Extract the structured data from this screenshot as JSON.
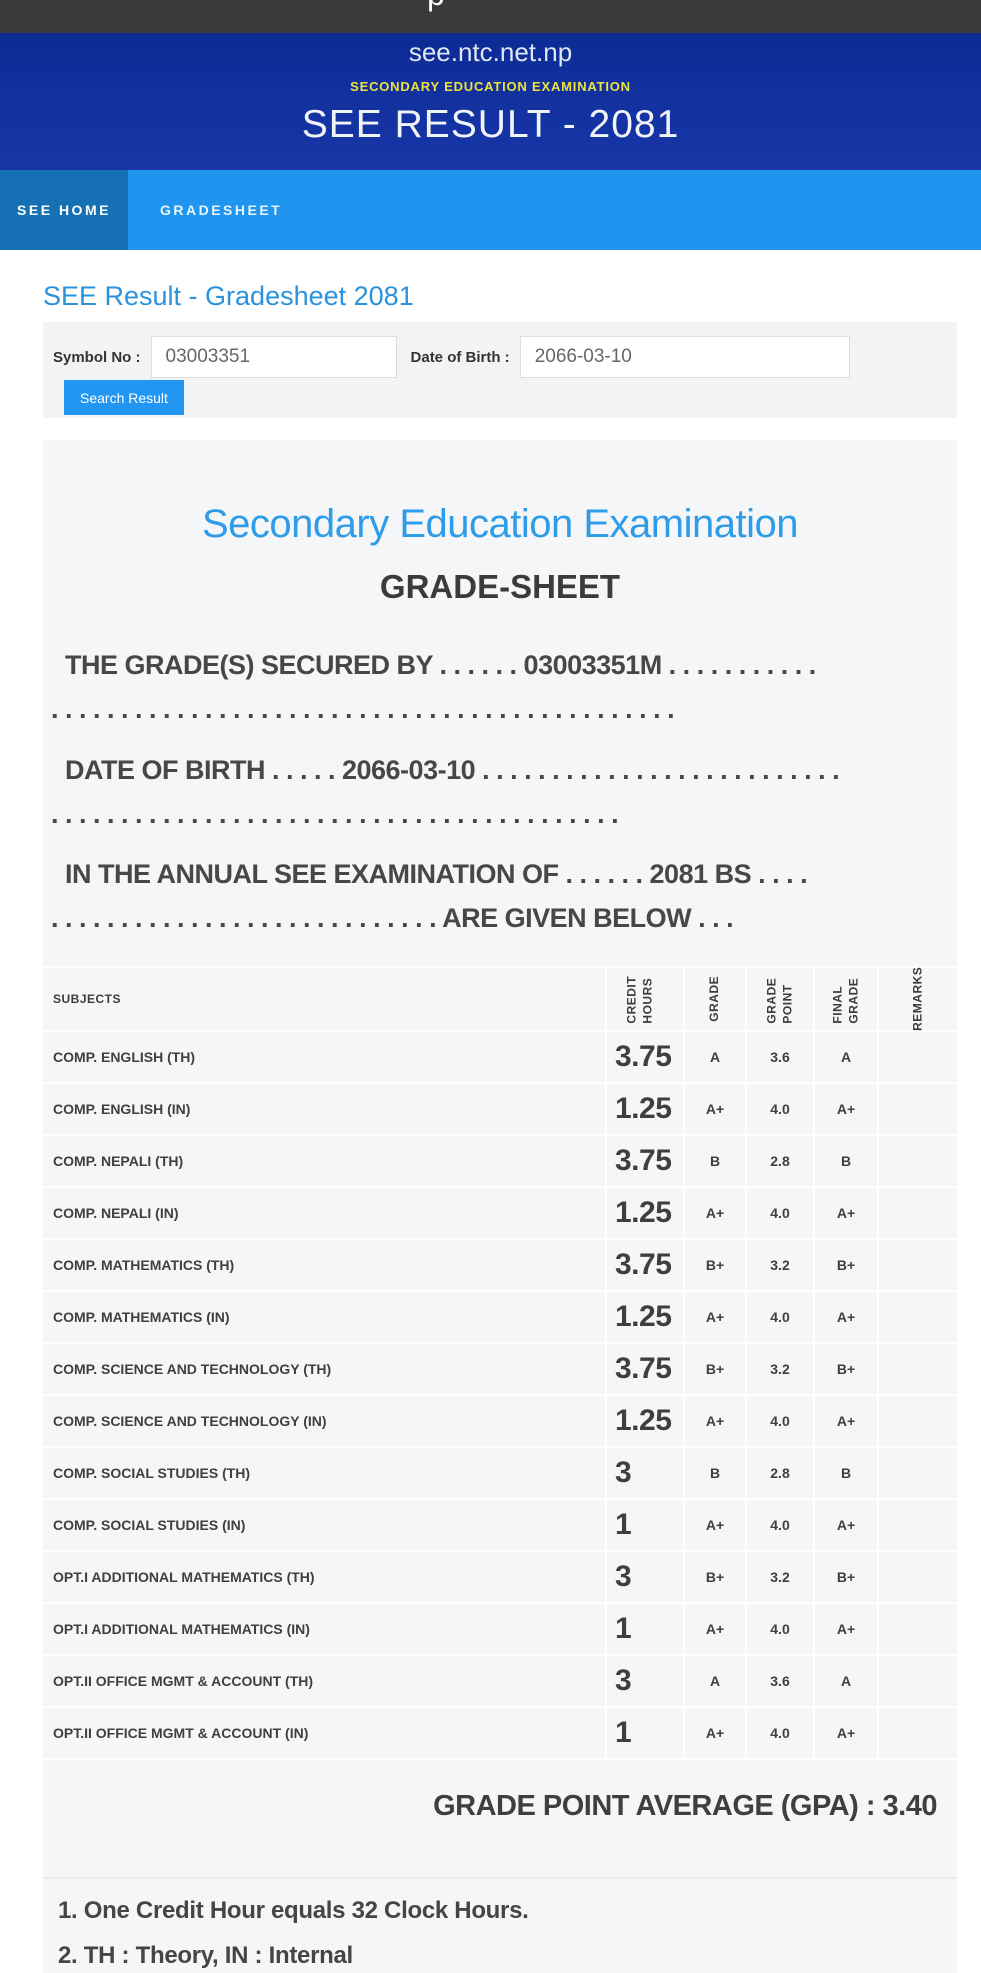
{
  "browser": {
    "clipped_title_fragment": "p"
  },
  "header": {
    "site": "see.ntc.net.np",
    "subtitle": "SECONDARY EDUCATION EXAMINATION",
    "title": "SEE RESULT - 2081"
  },
  "nav": {
    "items": [
      {
        "label": "SEE HOME",
        "active": true
      },
      {
        "label": "GRADESHEET",
        "active": false
      }
    ]
  },
  "page": {
    "heading": "SEE Result - Gradesheet 2081"
  },
  "search_form": {
    "symbol_label": "Symbol No :",
    "symbol_value": "03003351",
    "dob_label": "Date of Birth :",
    "dob_value": "2066-03-10",
    "submit_label": "Search Result"
  },
  "gradesheet": {
    "board": "Secondary Education Examination",
    "doc_title": "GRADE-SHEET",
    "secured_line1": "THE GRADE(S) SECURED BY . . . . . . 03003351M . . . . . . . . . . .",
    "secured_line2": ". . . . . . . . . . . . . . . . . . . . . . . . . . . . . . . . . . . . . . . . . . . . .",
    "dob_line1": "DATE OF BIRTH . . . . . 2066-03-10 . . . . . . . . . . . . . . . . . . . . . . . . . .",
    "dob_line2": ". . . . . . . . . . . . . . . . . . . . . . . . . . . . . . . . . . . . . . . . .",
    "exam_line1": "IN THE ANNUAL SEE EXAMINATION OF . . . . . . 2081 BS . . . .",
    "exam_line2": ". . . . . . . . . . . . . . . . . . . . . . . . . . . . ARE GIVEN BELOW . . .",
    "gpa_text": "GRADE POINT AVERAGE (GPA) : 3.40",
    "notes": [
      "1. One Credit Hour equals 32 Clock Hours.",
      "2. TH : Theory, IN : Internal"
    ]
  },
  "table": {
    "headers": [
      "SUBJECTS",
      "CREDIT HOURS",
      "GRADE",
      "GRADE POINT",
      "FINAL GRADE",
      "REMARKS"
    ],
    "rows": [
      {
        "subject": "COMP. ENGLISH (TH)",
        "credit": "3.75",
        "grade": "A",
        "point": "3.6",
        "final": "A",
        "remarks": ""
      },
      {
        "subject": "COMP. ENGLISH (IN)",
        "credit": "1.25",
        "grade": "A+",
        "point": "4.0",
        "final": "A+",
        "remarks": ""
      },
      {
        "subject": "COMP. NEPALI (TH)",
        "credit": "3.75",
        "grade": "B",
        "point": "2.8",
        "final": "B",
        "remarks": ""
      },
      {
        "subject": "COMP. NEPALI (IN)",
        "credit": "1.25",
        "grade": "A+",
        "point": "4.0",
        "final": "A+",
        "remarks": ""
      },
      {
        "subject": "COMP. MATHEMATICS (TH)",
        "credit": "3.75",
        "grade": "B+",
        "point": "3.2",
        "final": "B+",
        "remarks": ""
      },
      {
        "subject": "COMP. MATHEMATICS (IN)",
        "credit": "1.25",
        "grade": "A+",
        "point": "4.0",
        "final": "A+",
        "remarks": ""
      },
      {
        "subject": "COMP. SCIENCE AND TECHNOLOGY (TH)",
        "credit": "3.75",
        "grade": "B+",
        "point": "3.2",
        "final": "B+",
        "remarks": ""
      },
      {
        "subject": "COMP. SCIENCE AND TECHNOLOGY (IN)",
        "credit": "1.25",
        "grade": "A+",
        "point": "4.0",
        "final": "A+",
        "remarks": ""
      },
      {
        "subject": "COMP. SOCIAL STUDIES (TH)",
        "credit": "3",
        "grade": "B",
        "point": "2.8",
        "final": "B",
        "remarks": ""
      },
      {
        "subject": "COMP. SOCIAL STUDIES (IN)",
        "credit": "1",
        "grade": "A+",
        "point": "4.0",
        "final": "A+",
        "remarks": ""
      },
      {
        "subject": "OPT.I ADDITIONAL MATHEMATICS (TH)",
        "credit": "3",
        "grade": "B+",
        "point": "3.2",
        "final": "B+",
        "remarks": ""
      },
      {
        "subject": "OPT.I ADDITIONAL MATHEMATICS (IN)",
        "credit": "1",
        "grade": "A+",
        "point": "4.0",
        "final": "A+",
        "remarks": ""
      },
      {
        "subject": "OPT.II OFFICE MGMT & ACCOUNT (TH)",
        "credit": "3",
        "grade": "A",
        "point": "3.6",
        "final": "A",
        "remarks": ""
      },
      {
        "subject": "OPT.II OFFICE MGMT & ACCOUNT (IN)",
        "credit": "1",
        "grade": "A+",
        "point": "4.0",
        "final": "A+",
        "remarks": ""
      }
    ]
  },
  "colors": {
    "masthead_blue": "#11309e",
    "accent_yellow": "#eee23c",
    "nav_blue": "#2095f0",
    "nav_active_blue": "#1571b3",
    "link_blue": "#2b93dd",
    "heading_blue": "#2e9ce8",
    "button_blue": "#2196f3",
    "text_dark": "#3f3f3f",
    "panel_gray": "#f5f6f7"
  }
}
